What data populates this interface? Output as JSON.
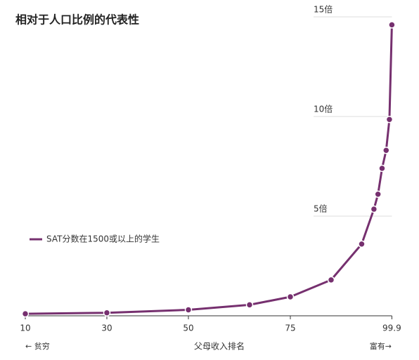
{
  "chart_data": {
    "type": "line",
    "title": "相对于人口比例的代表性",
    "x_label": "父母收入排名",
    "x_annotations": [
      "← 贫穷",
      "富有→"
    ],
    "x": [
      10,
      30,
      50,
      65,
      75,
      85,
      92.5,
      95.5,
      96.5,
      97.5,
      98.5,
      99.3,
      99.9
    ],
    "series": [
      {
        "name": "SAT分数在1500或以上的学生",
        "color": "#76306f",
        "values": [
          0.1,
          0.15,
          0.3,
          0.55,
          0.95,
          1.8,
          3.6,
          5.35,
          6.1,
          7.4,
          8.3,
          9.85,
          14.6
        ]
      }
    ],
    "xlim": [
      10,
      99.9
    ],
    "xticks": [
      10,
      30,
      50,
      75,
      99.9
    ],
    "ylim": [
      0,
      15
    ],
    "yticks": [
      {
        "value": 5,
        "label": "5倍"
      },
      {
        "value": 10,
        "label": "10倍"
      },
      {
        "value": 15,
        "label": "15倍"
      }
    ],
    "grid": true,
    "legend": "left"
  }
}
